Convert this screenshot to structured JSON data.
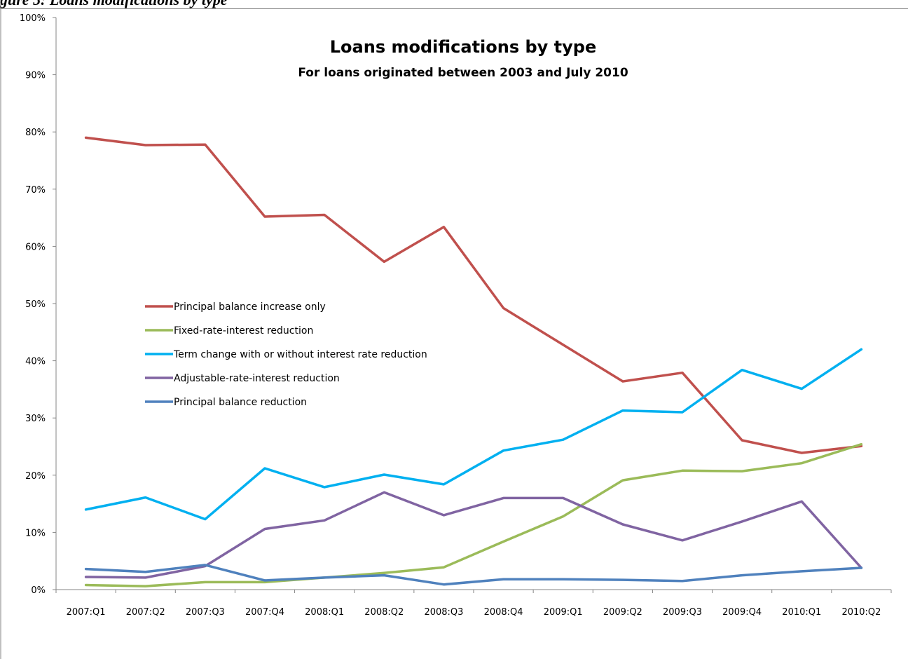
{
  "figure_caption": "gure 5: Loans modifications by type",
  "chart_data": {
    "type": "line",
    "title": "Loans modifications by type",
    "subtitle": "For loans originated between 2003 and July 2010",
    "xlabel": "",
    "ylabel": "",
    "ylim": [
      0,
      100
    ],
    "y_ticks": [
      "0%",
      "10%",
      "20%",
      "30%",
      "40%",
      "50%",
      "60%",
      "70%",
      "80%",
      "90%",
      "100%"
    ],
    "categories": [
      "2007:Q1",
      "2007:Q2",
      "2007:Q3",
      "2007:Q4",
      "2008:Q1",
      "2008:Q2",
      "2008:Q3",
      "2008:Q4",
      "2009:Q1",
      "2009:Q2",
      "2009:Q3",
      "2009:Q4",
      "2010:Q1",
      "2010:Q2"
    ],
    "grid": false,
    "legend_position": "center-left",
    "series": [
      {
        "name": "Principal balance increase only",
        "color": "#c0504d",
        "values": [
          79.0,
          77.7,
          77.8,
          65.2,
          65.5,
          57.3,
          63.4,
          49.2,
          42.8,
          36.4,
          37.9,
          26.1,
          23.9,
          25.1
        ]
      },
      {
        "name": "Fixed-rate-interest reduction",
        "color": "#9bbb59",
        "values": [
          0.8,
          0.6,
          1.3,
          1.3,
          2.1,
          2.9,
          3.9,
          8.4,
          12.8,
          19.1,
          20.8,
          20.7,
          22.1,
          25.4
        ]
      },
      {
        "name": "Term change with or without interest rate reduction",
        "color": "#00b0f0",
        "values": [
          14.0,
          16.1,
          12.3,
          21.2,
          17.9,
          20.1,
          18.4,
          24.3,
          26.2,
          31.3,
          31.0,
          38.4,
          35.1,
          42.0
        ]
      },
      {
        "name": "Adjustable-rate-interest reduction",
        "color": "#8064a2",
        "values": [
          2.2,
          2.1,
          4.1,
          10.6,
          12.1,
          17.0,
          13.0,
          16.0,
          16.0,
          11.4,
          8.6,
          11.9,
          15.4,
          3.8
        ]
      },
      {
        "name": "Principal balance reduction",
        "color": "#4f81bd",
        "values": [
          3.6,
          3.1,
          4.3,
          1.6,
          2.1,
          2.5,
          0.9,
          1.8,
          1.8,
          1.7,
          1.5,
          2.5,
          3.2,
          3.8
        ]
      }
    ]
  }
}
